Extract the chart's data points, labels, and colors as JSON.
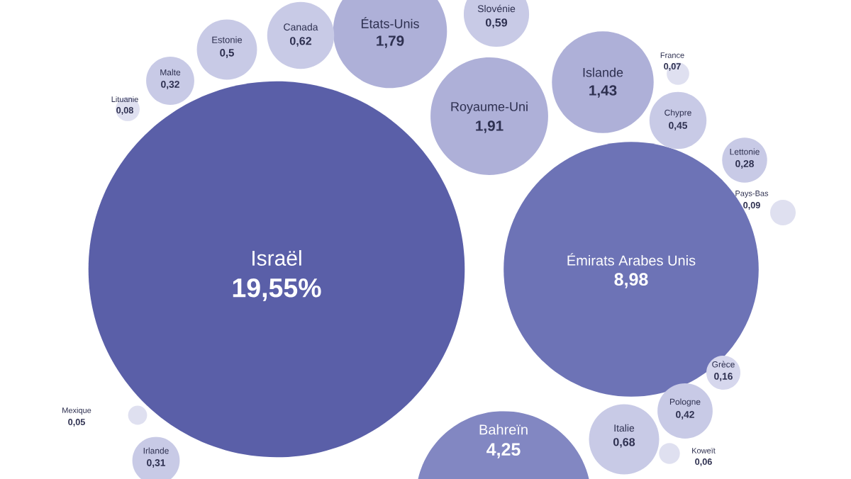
{
  "chart_data": {
    "type": "other",
    "categories": [
      "Israël",
      "Émirats Arabes Unis",
      "Bahreïn",
      "Royaume-Uni",
      "États-Unis",
      "Islande",
      "Italie",
      "Canada",
      "Slovénie",
      "Estonie",
      "Chypre",
      "Pologne",
      "Malte",
      "Irlande",
      "Lettonie",
      "Grèce",
      "Lituanie",
      "Pays-Bas",
      "France",
      "Koweït",
      "Mexique"
    ],
    "values": [
      19.55,
      8.98,
      4.25,
      1.91,
      1.79,
      1.43,
      0.68,
      0.62,
      0.59,
      0.5,
      0.45,
      0.42,
      0.32,
      0.31,
      0.28,
      0.16,
      0.08,
      0.09,
      0.07,
      0.06,
      0.05
    ],
    "value_labels": [
      "19,55%",
      "8,98",
      "4,25",
      "1,91",
      "1,79",
      "1,43",
      "0,68",
      "0,62",
      "0,59",
      "0,5",
      "0,45",
      "0,42",
      "0,32",
      "0,31",
      "0,28",
      "0,16",
      "0,08",
      "0,09",
      "0,07",
      "0,06",
      "0,05"
    ],
    "colors": [
      "#5a5fa8",
      "#6d73b6",
      "#8287c2",
      "#aeb0d8",
      "#aeb0d8",
      "#aeb0d8",
      "#c8cae6",
      "#c8cae6",
      "#c8cae6",
      "#c8cae6",
      "#c8cae6",
      "#c8cae6",
      "#c8cae6",
      "#c8cae6",
      "#c8cae6",
      "#d6d7ed",
      "#dfe0f0",
      "#dfe0f0",
      "#dfe0f0",
      "#dfe0f0",
      "#dfe0f0"
    ]
  }
}
